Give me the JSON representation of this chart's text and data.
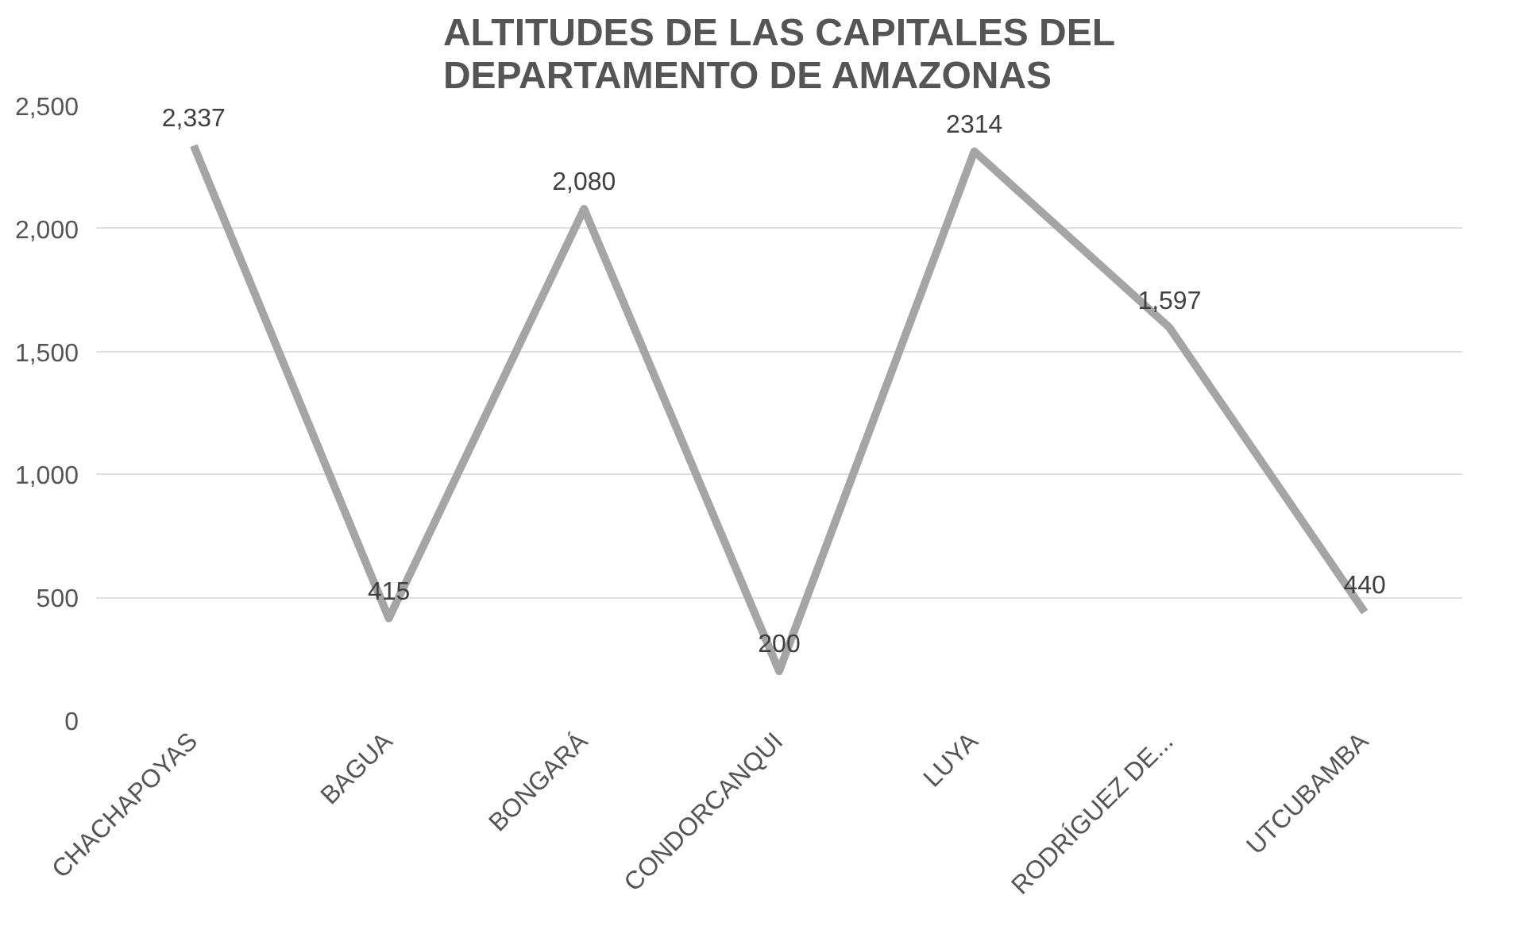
{
  "chart_data": {
    "type": "line",
    "title": "ALTITUDES DE LAS CAPITALES DEL\nDEPARTAMENTO DE AMAZONAS",
    "categories": [
      "CHACHAPOYAS",
      "BAGUA",
      "BONGARÁ",
      "CONDORCANQUI",
      "LUYA",
      "RODRÍGUEZ DE...",
      "UTCUBAMBA"
    ],
    "values": [
      2337,
      415,
      2080,
      200,
      2314,
      1597,
      440
    ],
    "value_labels": [
      "2,337",
      "415",
      "2,080",
      "200",
      "2314",
      "1,597",
      "440"
    ],
    "color": "#a5a5a5",
    "ylim": [
      0,
      2500
    ],
    "yticks": [
      {
        "value": 0,
        "label": "0"
      },
      {
        "value": 500,
        "label": "500"
      },
      {
        "value": 1000,
        "label": "1,000"
      },
      {
        "value": 1500,
        "label": "1,500"
      },
      {
        "value": 2000,
        "label": "2,000"
      },
      {
        "value": 2500,
        "label": "2,500"
      }
    ],
    "grid": "y",
    "marker": "none",
    "line_style": "solid"
  }
}
